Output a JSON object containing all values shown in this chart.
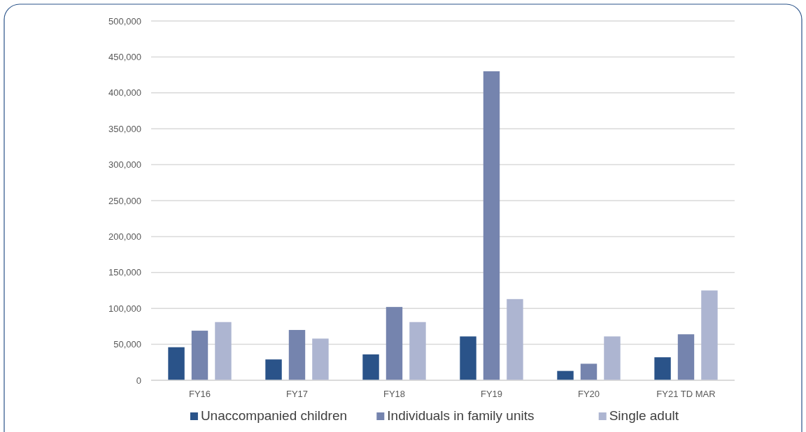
{
  "chart_data": {
    "type": "bar",
    "categories": [
      "FY16",
      "FY17",
      "FY18",
      "FY19",
      "FY20",
      "FY21 TD MAR"
    ],
    "series": [
      {
        "name": "Unaccompanied children",
        "color": "#2a5389",
        "values": [
          46000,
          29000,
          36000,
          61000,
          13000,
          32000
        ]
      },
      {
        "name": "Individuals in family units",
        "color": "#7584ae",
        "values": [
          69000,
          70000,
          102000,
          430000,
          23000,
          64000
        ]
      },
      {
        "name": "Single adult",
        "color": "#adb5d1",
        "values": [
          81000,
          58000,
          81000,
          113000,
          61000,
          125000
        ]
      }
    ],
    "ylim": [
      0,
      500000
    ],
    "yticks": [
      {
        "value": 0,
        "label": "0"
      },
      {
        "value": 50000,
        "label": "50,000"
      },
      {
        "value": 100000,
        "label": "100,000"
      },
      {
        "value": 150000,
        "label": "150,000"
      },
      {
        "value": 200000,
        "label": "200,000"
      },
      {
        "value": 250000,
        "label": "250,000"
      },
      {
        "value": 300000,
        "label": "300,000"
      },
      {
        "value": 350000,
        "label": "350,000"
      },
      {
        "value": 400000,
        "label": "400,000"
      },
      {
        "value": 450000,
        "label": "450,000"
      },
      {
        "value": 500000,
        "label": "500,000"
      }
    ],
    "grid": "y",
    "legend": "bottom"
  }
}
